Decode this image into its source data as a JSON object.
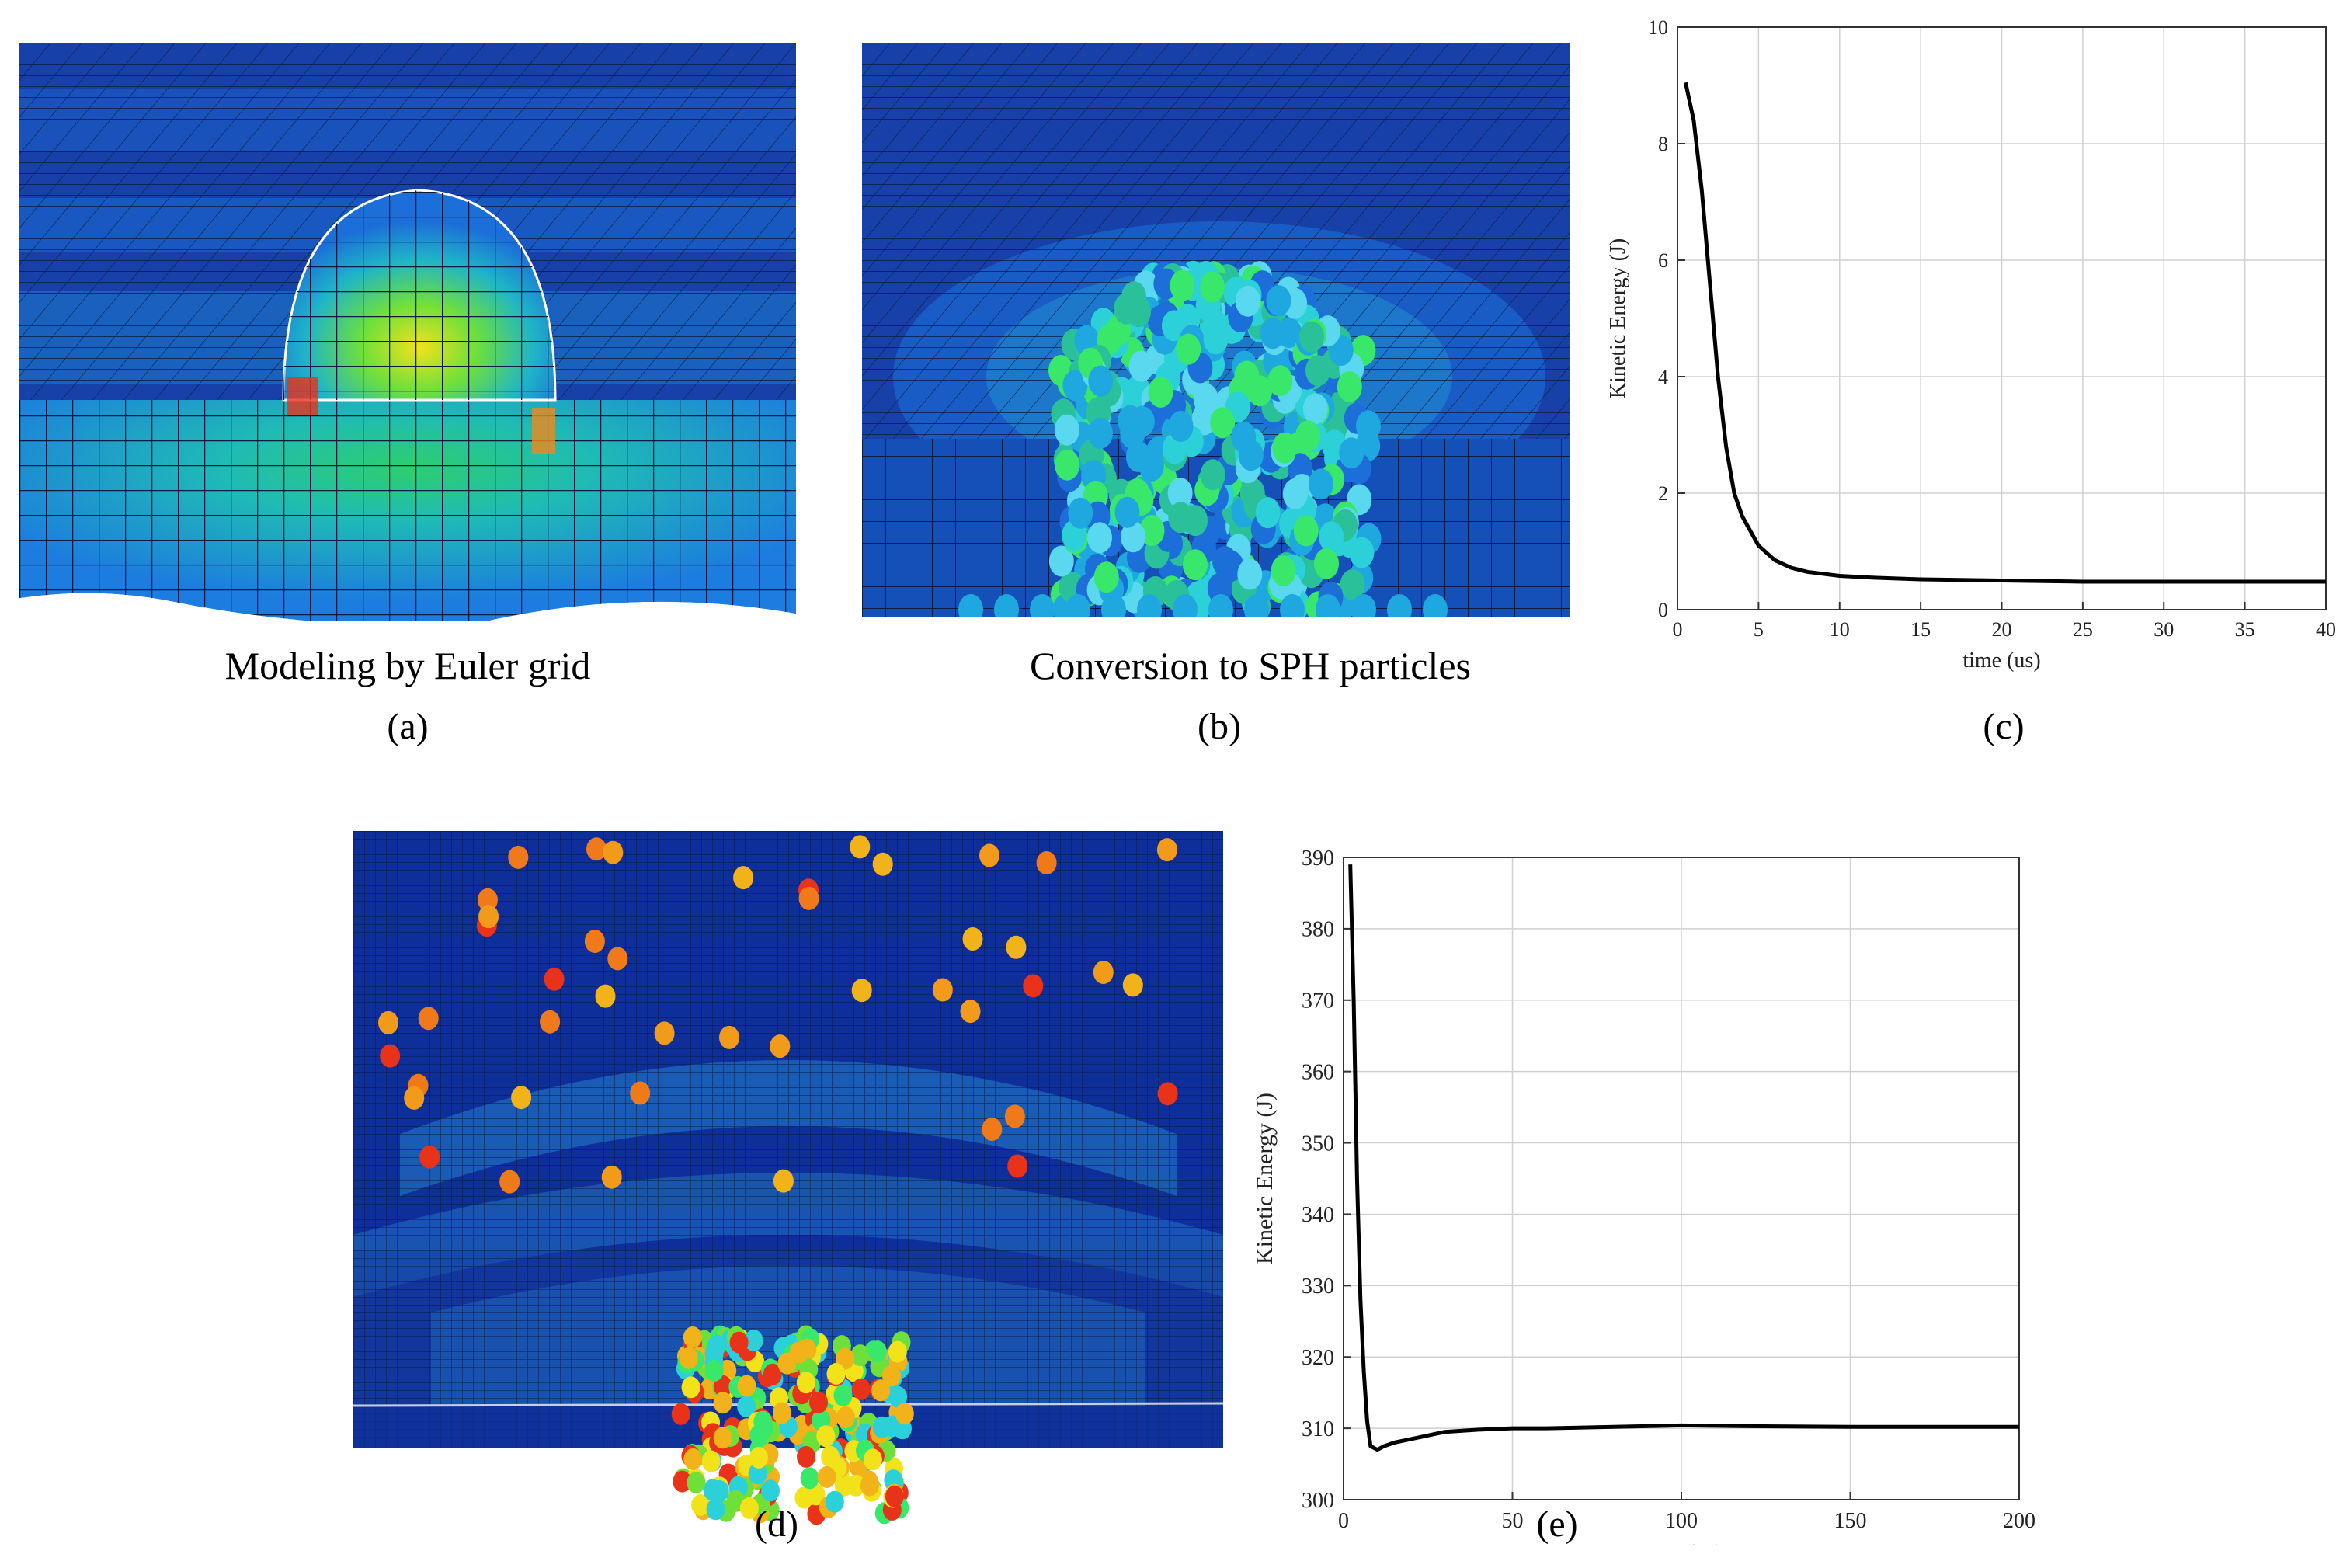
{
  "panels": {
    "a": {
      "letter": "(a)",
      "caption": "Modeling by Euler grid"
    },
    "b": {
      "letter": "(b)",
      "caption": "Conversion to SPH particles"
    },
    "c": {
      "letter": "(c)"
    },
    "d": {
      "letter": "(d)"
    },
    "e": {
      "letter": "(e)"
    }
  },
  "colors": {
    "mesh_dark": "#0a2a8c",
    "mesh_mid": "#1c6fd8",
    "mesh_cyan": "#1fb4c8",
    "mesh_green": "#2fe05a",
    "mesh_yellow": "#f2e21a",
    "mesh_red": "#e8321a",
    "line": "#000000",
    "grid": "#d0d0d0"
  },
  "chart_data": [
    {
      "id": "c",
      "type": "line",
      "title": "",
      "xlabel": "time (us)",
      "ylabel": "Kinetic Energy (J)",
      "xlim": [
        0,
        40
      ],
      "ylim": [
        0,
        10
      ],
      "xticks": [
        0,
        5,
        10,
        15,
        20,
        25,
        30,
        35,
        40
      ],
      "yticks": [
        0,
        2,
        4,
        6,
        8,
        10
      ],
      "grid": true,
      "series": [
        {
          "name": "Kinetic Energy",
          "x": [
            0.5,
            1,
            1.5,
            2,
            2.5,
            3,
            3.5,
            4,
            5,
            6,
            7,
            8,
            10,
            12,
            15,
            20,
            25,
            30,
            35,
            40
          ],
          "y": [
            9.05,
            8.4,
            7.2,
            5.6,
            4.0,
            2.8,
            2.0,
            1.6,
            1.1,
            0.85,
            0.72,
            0.65,
            0.58,
            0.55,
            0.52,
            0.5,
            0.48,
            0.48,
            0.48,
            0.48
          ]
        }
      ]
    },
    {
      "id": "e",
      "type": "line",
      "title": "",
      "xlabel": "time (us)",
      "ylabel": "Kinetic Energy (J)",
      "xlim": [
        0,
        200
      ],
      "ylim": [
        300,
        390
      ],
      "xticks": [
        0,
        50,
        100,
        150,
        200
      ],
      "yticks": [
        300,
        310,
        320,
        330,
        340,
        350,
        360,
        370,
        380,
        390
      ],
      "grid": true,
      "series": [
        {
          "name": "Kinetic Energy",
          "x": [
            2,
            3,
            4,
            5,
            6,
            7,
            8,
            10,
            12,
            15,
            20,
            25,
            30,
            40,
            50,
            60,
            80,
            100,
            120,
            150,
            180,
            200
          ],
          "y": [
            389,
            370,
            345,
            328,
            318,
            311,
            307.5,
            307,
            307.5,
            308,
            308.5,
            309,
            309.5,
            309.8,
            310,
            310,
            310.2,
            310.4,
            310.3,
            310.2,
            310.2,
            310.2
          ]
        }
      ]
    }
  ]
}
